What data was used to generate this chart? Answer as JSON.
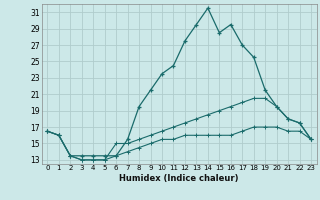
{
  "title": "",
  "xlabel": "Humidex (Indice chaleur)",
  "bg_color": "#cce8e8",
  "grid_color": "#b0cccc",
  "line_color": "#1a6b6b",
  "xlim": [
    -0.5,
    23.5
  ],
  "ylim": [
    12.5,
    32.0
  ],
  "xticks": [
    0,
    1,
    2,
    3,
    4,
    5,
    6,
    7,
    8,
    9,
    10,
    11,
    12,
    13,
    14,
    15,
    16,
    17,
    18,
    19,
    20,
    21,
    22,
    23
  ],
  "yticks": [
    13,
    15,
    17,
    19,
    21,
    23,
    25,
    27,
    29,
    31
  ],
  "line1_x": [
    0,
    1,
    2,
    3,
    4,
    5,
    6,
    7,
    8,
    9,
    10,
    11,
    12,
    13,
    14,
    15,
    16,
    17,
    18,
    19,
    20,
    21,
    22,
    23
  ],
  "line1_y": [
    16.5,
    16.0,
    13.5,
    13.5,
    13.5,
    13.5,
    13.5,
    15.5,
    19.5,
    21.5,
    23.5,
    24.5,
    27.5,
    29.5,
    31.5,
    28.5,
    29.5,
    27.0,
    25.5,
    21.5,
    19.5,
    18.0,
    17.5,
    15.5
  ],
  "line2_x": [
    0,
    1,
    2,
    3,
    4,
    5,
    6,
    7,
    8,
    9,
    10,
    11,
    12,
    13,
    14,
    15,
    16,
    17,
    18,
    19,
    20,
    21,
    22,
    23
  ],
  "line2_y": [
    16.5,
    16.0,
    13.5,
    13.0,
    13.0,
    13.0,
    15.0,
    15.0,
    15.5,
    16.0,
    16.5,
    17.0,
    17.5,
    18.0,
    18.5,
    19.0,
    19.5,
    20.0,
    20.5,
    20.5,
    19.5,
    18.0,
    17.5,
    15.5
  ],
  "line3_x": [
    0,
    1,
    2,
    3,
    4,
    5,
    6,
    7,
    8,
    9,
    10,
    11,
    12,
    13,
    14,
    15,
    16,
    17,
    18,
    19,
    20,
    21,
    22,
    23
  ],
  "line3_y": [
    16.5,
    16.0,
    13.5,
    13.0,
    13.0,
    13.0,
    13.5,
    14.0,
    14.5,
    15.0,
    15.5,
    15.5,
    16.0,
    16.0,
    16.0,
    16.0,
    16.0,
    16.5,
    17.0,
    17.0,
    17.0,
    16.5,
    16.5,
    15.5
  ],
  "xtick_fontsize": 5.0,
  "ytick_fontsize": 5.5,
  "xlabel_fontsize": 6.0
}
